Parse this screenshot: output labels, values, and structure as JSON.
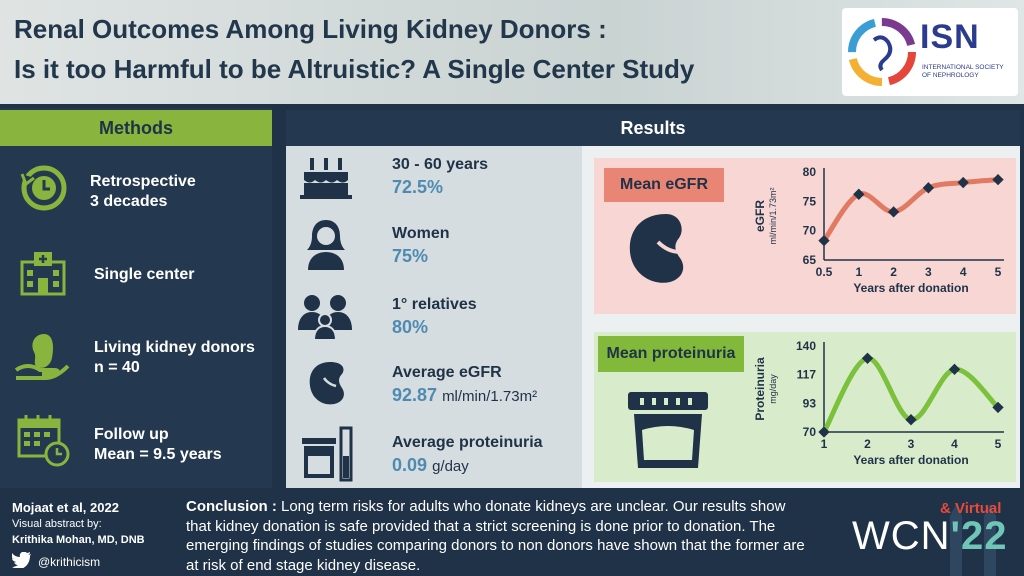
{
  "header": {
    "title_line1": "Renal Outcomes Among Living Kidney Donors :",
    "title_line2": "Is it too Harmful to be Altruistic? A Single Center Study",
    "logo_text": "ISN",
    "logo_sub1": "INTERNATIONAL SOCIETY",
    "logo_sub2": "OF NEPHROLOGY"
  },
  "methods": {
    "title": "Methods",
    "items": [
      {
        "icon": "history-clock-icon",
        "line1": "Retrospective",
        "line2": "3 decades"
      },
      {
        "icon": "hospital-icon",
        "line1": "Single center",
        "line2": ""
      },
      {
        "icon": "kidney-hand-icon",
        "line1": "Living kidney donors",
        "line2": "n = 40"
      },
      {
        "icon": "calendar-clock-icon",
        "line1": "Follow up",
        "line2": "Mean = 9.5 years"
      }
    ]
  },
  "results": {
    "title": "Results",
    "stats": [
      {
        "icon": "cake-icon",
        "label": "30 - 60 years",
        "value": "72.5%",
        "unit": ""
      },
      {
        "icon": "woman-icon",
        "label": "Women",
        "value": "75%",
        "unit": ""
      },
      {
        "icon": "family-icon",
        "label": "1° relatives",
        "value": "80%",
        "unit": ""
      },
      {
        "icon": "kidney-icon",
        "label": "Average eGFR",
        "value": "92.87",
        "unit": "ml/min/1.73m²"
      },
      {
        "icon": "test-tube-icon",
        "label": "Average proteinuria",
        "value": "0.09",
        "unit": "g/day"
      }
    ]
  },
  "chart_data": [
    {
      "type": "line",
      "title": "Mean eGFR",
      "xlabel": "Years after donation",
      "ylabel": "eGFR",
      "ylabel_unit": "ml/min/1.73m²",
      "categories": [
        "0.5",
        "1",
        "2",
        "3",
        "4",
        "5"
      ],
      "values": [
        68.3,
        76.2,
        73.2,
        77.3,
        78.2,
        78.7
      ],
      "yticks": [
        "80",
        "75",
        "70",
        "65"
      ],
      "ylim": [
        65,
        80
      ],
      "color": "#e07a62"
    },
    {
      "type": "line",
      "title": "Mean proteinuria",
      "xlabel": "Years after donation",
      "ylabel": "Proteinuria",
      "ylabel_unit": "mg/day",
      "categories": [
        "1",
        "2",
        "3",
        "4",
        "5"
      ],
      "values": [
        70,
        130,
        80,
        121,
        90
      ],
      "yticks": [
        "140",
        "117",
        "93",
        "70"
      ],
      "ylim": [
        70,
        140
      ],
      "color": "#7cc13b"
    }
  ],
  "footer": {
    "citation": "Mojaat et al, 2022",
    "abstract_by": "Visual abstract by:",
    "author": "Krithika Mohan, MD, DNB",
    "handle": "@krithicism",
    "conclusion_label": "Conclusion :",
    "conclusion_text": " Long term risks for adults who donate kidneys are unclear. Our results show that kidney donation is safe provided that a strict screening is done prior to donation. The emerging findings of studies comparing donors to non donors have shown that the former are at risk of end stage kidney disease.",
    "event_name": "WCN",
    "event_year": "'22",
    "event_tag": "& Virtual"
  },
  "colors": {
    "navy": "#1f3247",
    "green": "#89b43e",
    "salmon": "#e98574",
    "teal_value": "#4f8bb0"
  }
}
